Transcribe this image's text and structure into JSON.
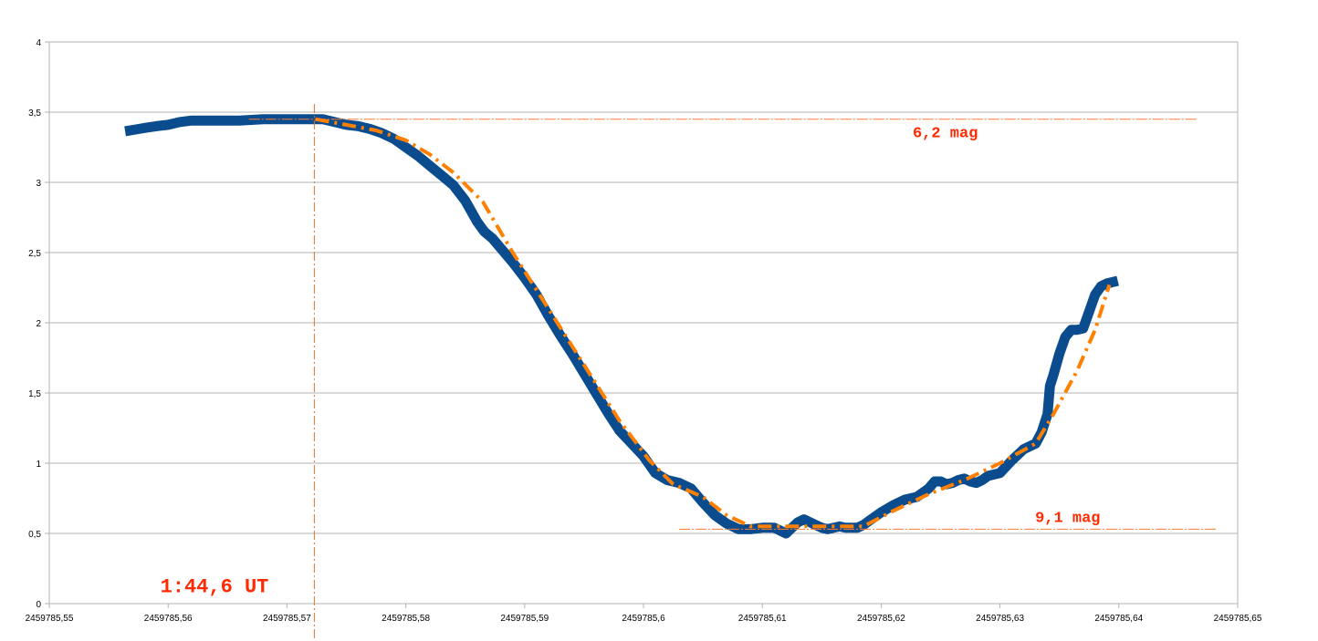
{
  "chart_data": {
    "type": "line",
    "title": "",
    "xlabel": "",
    "ylabel": "",
    "xlim": [
      2459785.55,
      2459785.65
    ],
    "ylim": [
      0,
      4
    ],
    "grid": "horizontal",
    "x_ticks": [
      {
        "value": 2459785.55,
        "label": "2459785,55"
      },
      {
        "value": 2459785.56,
        "label": "2459785,56"
      },
      {
        "value": 2459785.57,
        "label": "2459785,57"
      },
      {
        "value": 2459785.58,
        "label": "2459785,58"
      },
      {
        "value": 2459785.59,
        "label": "2459785,59"
      },
      {
        "value": 2459785.6,
        "label": "2459785,6"
      },
      {
        "value": 2459785.61,
        "label": "2459785,61"
      },
      {
        "value": 2459785.62,
        "label": "2459785,62"
      },
      {
        "value": 2459785.63,
        "label": "2459785,63"
      },
      {
        "value": 2459785.64,
        "label": "2459785,64"
      },
      {
        "value": 2459785.65,
        "label": "2459785,65"
      }
    ],
    "y_ticks": [
      {
        "value": 0,
        "label": "0"
      },
      {
        "value": 0.5,
        "label": "0,5"
      },
      {
        "value": 1,
        "label": "1"
      },
      {
        "value": 1.5,
        "label": "1,5"
      },
      {
        "value": 2,
        "label": "2"
      },
      {
        "value": 2.5,
        "label": "2,5"
      },
      {
        "value": 3,
        "label": "3"
      },
      {
        "value": 3.5,
        "label": "3,5"
      },
      {
        "value": 4,
        "label": "4"
      }
    ],
    "series": [
      {
        "color": "#0b4c8f",
        "style": "solid-thick",
        "x": [
          2459785.5568,
          2459785.5575,
          2459785.5582,
          2459785.559,
          2459785.56,
          2459785.561,
          2459785.562,
          2459785.564,
          2459785.566,
          2459785.568,
          2459785.57,
          2459785.572,
          2459785.573,
          2459785.574,
          2459785.575,
          2459785.576,
          2459785.577,
          2459785.578,
          2459785.579,
          2459785.58,
          2459785.581,
          2459785.582,
          2459785.583,
          2459785.584,
          2459785.585,
          2459785.586,
          2459785.5866,
          2459785.5873,
          2459785.588,
          2459785.589,
          2459785.59,
          2459785.591,
          2459785.592,
          2459785.593,
          2459785.594,
          2459785.595,
          2459785.596,
          2459785.597,
          2459785.598,
          2459785.599,
          2459785.6,
          2459785.601,
          2459785.602,
          2459785.603,
          2459785.604,
          2459785.605,
          2459785.606,
          2459785.607,
          2459785.608,
          2459785.609,
          2459785.61,
          2459785.611,
          2459785.6115,
          2459785.612,
          2459785.6125,
          2459785.613,
          2459785.6135,
          2459785.614,
          2459785.6145,
          2459785.615,
          2459785.6155,
          2459785.616,
          2459785.6165,
          2459785.617,
          2459785.6175,
          2459785.618,
          2459785.6185,
          2459785.619,
          2459785.62,
          2459785.621,
          2459785.622,
          2459785.623,
          2459785.624,
          2459785.6245,
          2459785.625,
          2459785.6255,
          2459785.626,
          2459785.6265,
          2459785.627,
          2459785.6275,
          2459785.628,
          2459785.6285,
          2459785.629,
          2459785.63,
          2459785.631,
          2459785.632,
          2459785.633,
          2459785.6335,
          2459785.634,
          2459785.6342,
          2459785.6345,
          2459785.635,
          2459785.6355,
          2459785.636,
          2459785.6365,
          2459785.637,
          2459785.6375,
          2459785.638,
          2459785.6385,
          2459785.639,
          2459785.6395
        ],
        "y": [
          3.37,
          3.38,
          3.39,
          3.4,
          3.41,
          3.43,
          3.44,
          3.44,
          3.44,
          3.45,
          3.45,
          3.45,
          3.45,
          3.43,
          3.41,
          3.4,
          3.38,
          3.35,
          3.31,
          3.25,
          3.19,
          3.12,
          3.05,
          2.98,
          2.87,
          2.72,
          2.65,
          2.6,
          2.53,
          2.43,
          2.32,
          2.2,
          2.05,
          1.91,
          1.78,
          1.64,
          1.5,
          1.36,
          1.23,
          1.14,
          1.05,
          0.93,
          0.88,
          0.86,
          0.82,
          0.72,
          0.63,
          0.57,
          0.53,
          0.53,
          0.54,
          0.54,
          0.52,
          0.5,
          0.54,
          0.58,
          0.6,
          0.58,
          0.56,
          0.54,
          0.53,
          0.54,
          0.55,
          0.54,
          0.54,
          0.54,
          0.56,
          0.59,
          0.65,
          0.7,
          0.74,
          0.76,
          0.82,
          0.87,
          0.87,
          0.85,
          0.86,
          0.88,
          0.89,
          0.87,
          0.86,
          0.88,
          0.91,
          0.93,
          1.02,
          1.1,
          1.14,
          1.22,
          1.35,
          1.55,
          1.63,
          1.78,
          1.9,
          1.95,
          1.95,
          1.96,
          2.08,
          2.2,
          2.26,
          2.28,
          2.29
        ]
      },
      {
        "color": "#ff8000",
        "style": "dash-dot",
        "x": [
          2459785.5724,
          2459785.575,
          2459785.5775,
          2459785.58,
          2459785.582,
          2459785.584,
          2459785.5865,
          2459785.589,
          2459785.592,
          2459785.595,
          2459785.598,
          2459785.6005,
          2459785.6025,
          2459785.605,
          2459785.607,
          2459785.609,
          2459785.612,
          2459785.615,
          2459785.6185,
          2459785.621,
          2459785.624,
          2459785.627,
          2459785.63,
          2459785.633,
          2459785.6345,
          2459785.6365,
          2459785.638,
          2459785.6392
        ],
        "y": [
          3.45,
          3.41,
          3.37,
          3.3,
          3.2,
          3.07,
          2.86,
          2.5,
          2.1,
          1.7,
          1.3,
          1.02,
          0.85,
          0.76,
          0.63,
          0.55,
          0.55,
          0.55,
          0.55,
          0.66,
          0.78,
          0.88,
          1.0,
          1.14,
          1.35,
          1.66,
          1.95,
          2.27
        ]
      }
    ],
    "reference_lines": [
      {
        "orientation": "horizontal",
        "y": 3.45,
        "x_start": 2459785.5668,
        "x_end": 2459785.6466,
        "color": "#ff7a30"
      },
      {
        "orientation": "horizontal",
        "y": 0.53,
        "x_start": 2459785.603,
        "x_end": 2459785.6482,
        "color": "#ff7a30"
      },
      {
        "orientation": "vertical",
        "x": 2459785.5723,
        "color": "#e07020"
      }
    ],
    "annotations": [
      {
        "text": "6,2 mag",
        "x": 2459785.6254,
        "y": 3.32
      },
      {
        "text": "9,1 mag",
        "x": 2459785.6357,
        "y": 0.58
      },
      {
        "text": "1:44,6 UT",
        "x": 2459785.5639,
        "y": 0.08
      }
    ]
  }
}
